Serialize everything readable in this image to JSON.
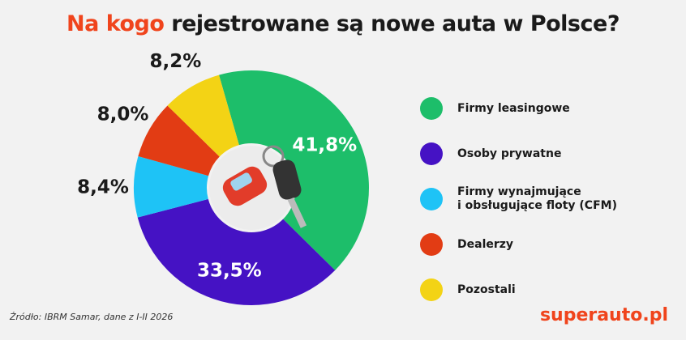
{
  "title": {
    "accent": "Na kogo",
    "rest": " rejestrowane są nowe auta w Polsce?"
  },
  "chart_data": {
    "type": "pie",
    "title": "Na kogo rejestrowane są nowe auta w Polsce?",
    "categories": [
      "Firmy leasingowe",
      "Osoby prywatne",
      "Firmy wynajmujące\ni obsługujące floty (CFM)",
      "Dealerzy",
      "Pozostali"
    ],
    "values": [
      41.8,
      33.5,
      8.4,
      8.0,
      8.2
    ],
    "labels": [
      "41,8%",
      "33,5%",
      "8,4%",
      "8,0%",
      "8,2%"
    ],
    "colors": [
      "#1dbe6a",
      "#4512c4",
      "#1ec3f6",
      "#e23c14",
      "#f3d315"
    ],
    "legend": "right"
  },
  "source": "Źródło: IBRM Samar, dane z I-II 2026",
  "brand": "superauto.pl"
}
